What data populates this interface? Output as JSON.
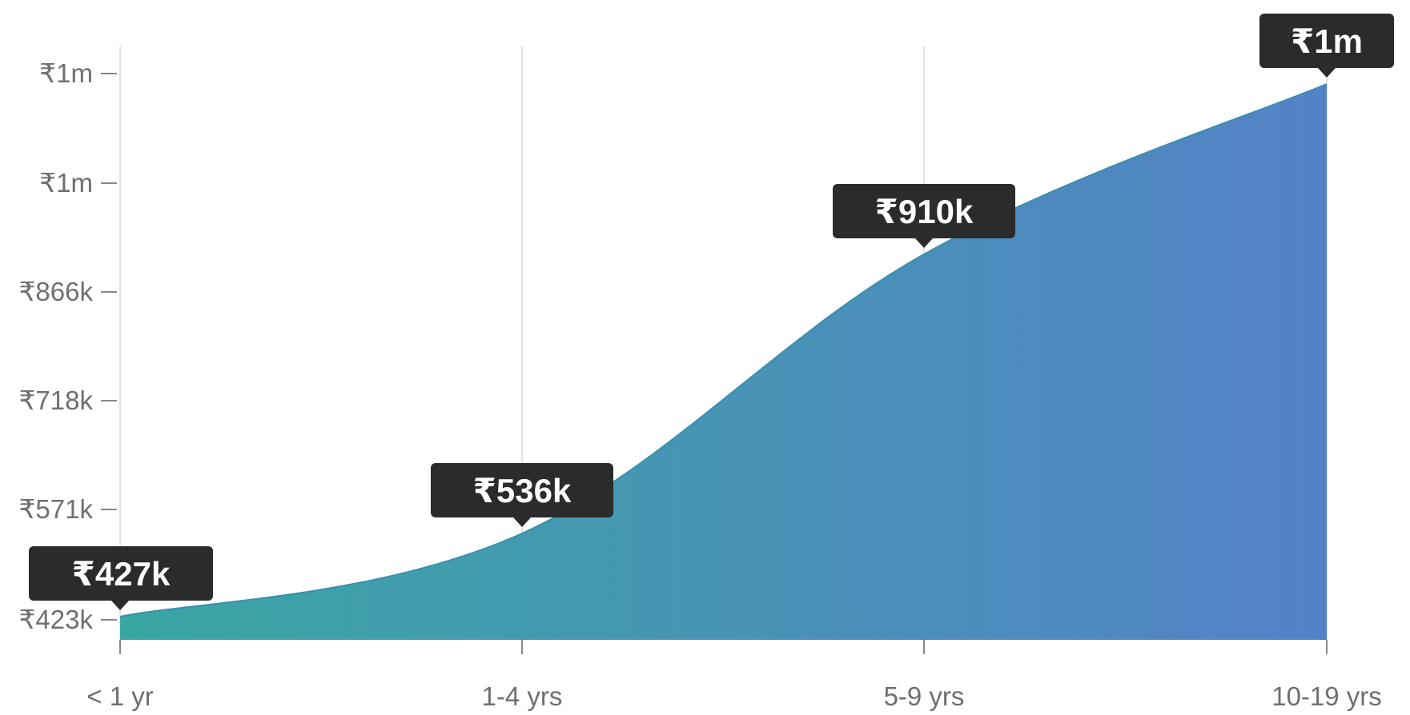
{
  "chart_data": {
    "type": "area",
    "categories": [
      "< 1 yr",
      "1-4 yrs",
      "5-9 yrs",
      "10-19 yrs"
    ],
    "values": [
      427000,
      536000,
      910000,
      1000000
    ],
    "value_labels": [
      "₹427k",
      "₹536k",
      "₹910k",
      "₹1m"
    ],
    "y_ticks": [
      {
        "value": 423000,
        "label": "₹423k"
      },
      {
        "value": 571000,
        "label": "₹571k"
      },
      {
        "value": 718000,
        "label": "₹718k"
      },
      {
        "value": 866000,
        "label": "₹866k"
      },
      {
        "value": 1000000,
        "label": "₹1m"
      },
      {
        "value": 1100000,
        "label": "₹1m"
      }
    ],
    "ylim": [
      423000,
      1180000
    ],
    "grid": "vertical",
    "fill_gradient": [
      "#3aa6a2",
      "#5482c8"
    ],
    "line_color": "#3a8fb0",
    "callout_color": "#2b2b2b",
    "axis_label_color": "#6f6f6f"
  }
}
